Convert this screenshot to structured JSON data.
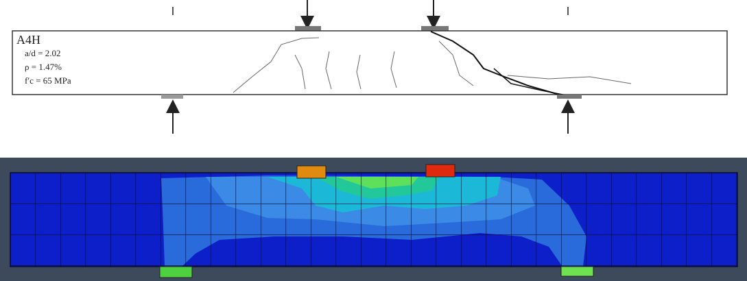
{
  "specimen": {
    "name": "A4H",
    "parameters": [
      "a/d = 2.02",
      "ρ = 1.47%",
      "f′c = 65 MPa"
    ]
  }
}
